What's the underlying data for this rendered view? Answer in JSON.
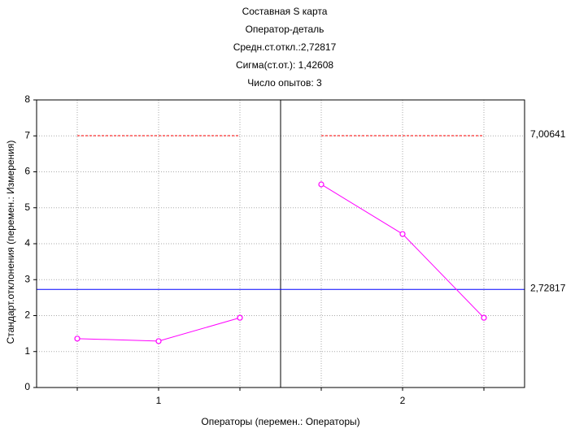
{
  "chart_data": {
    "type": "line",
    "title": [
      "Составная S карта",
      "Оператор-деталь",
      "Средн.ст.откл.:2,72817",
      "Сигма(ст.от.): 1,42608",
      "Число опытов:  3"
    ],
    "y_label": "Стандарт.отклонения (перемен.: Измерения)",
    "x_label": "Операторы (перемен.: Операторы)",
    "categories": [
      null,
      "1",
      null,
      null,
      "2",
      null
    ],
    "values": [
      1.36,
      1.29,
      1.94,
      5.65,
      4.27,
      1.94
    ],
    "color": "#ff00ff",
    "limits": [
      {
        "value": 7.00641,
        "label": "7,00641",
        "color": "#ff0000",
        "style": "dashed",
        "per_group": true
      },
      {
        "value": 2.72817,
        "label": "2,72817",
        "color": "#0000ff",
        "style": "solid",
        "per_group": false
      }
    ],
    "ylim": [
      0,
      8
    ],
    "yticks": [
      0,
      1,
      2,
      3,
      4,
      5,
      6,
      7,
      8
    ],
    "grid": true
  }
}
